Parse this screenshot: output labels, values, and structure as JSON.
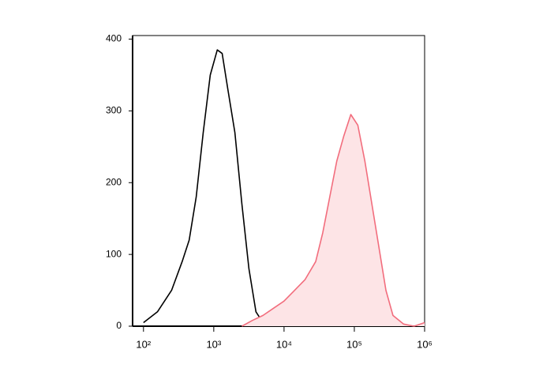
{
  "chart_data": {
    "type": "histogram-overlay",
    "xscale": "log",
    "xlim": [
      70,
      1000000
    ],
    "ylim": [
      0,
      405
    ],
    "xticks": [
      {
        "value": 100,
        "label": "10²"
      },
      {
        "value": 1000,
        "label": "10³"
      },
      {
        "value": 10000,
        "label": "10⁴"
      },
      {
        "value": 100000,
        "label": "10⁵"
      },
      {
        "value": 1000000,
        "label": "10⁶"
      }
    ],
    "yticks": [
      0,
      100,
      200,
      300,
      400
    ],
    "series": [
      {
        "color": "#000000",
        "filled": false,
        "x": [
          100,
          158,
          251,
          355,
          447,
          562,
          708,
          891,
          1122,
          1318,
          1585,
          1995,
          2512,
          3162,
          3981,
          5012,
          7079,
          10000
        ],
        "values": [
          5,
          20,
          50,
          90,
          120,
          180,
          270,
          350,
          385,
          380,
          330,
          270,
          170,
          80,
          20,
          5,
          0,
          0
        ]
      },
      {
        "color": "#f26d7d",
        "fill": "#fde4e6",
        "filled": true,
        "x": [
          2512,
          3548,
          5012,
          7079,
          10000,
          14125,
          19953,
          28184,
          35481,
          44668,
          56234,
          70795,
          89125,
          112202,
          141254,
          177828,
          223872,
          281838,
          354813,
          501187,
          707946,
          1000000
        ],
        "values": [
          0,
          8,
          15,
          25,
          35,
          50,
          65,
          90,
          130,
          180,
          230,
          265,
          295,
          280,
          230,
          170,
          110,
          50,
          15,
          3,
          0,
          5
        ]
      }
    ]
  }
}
